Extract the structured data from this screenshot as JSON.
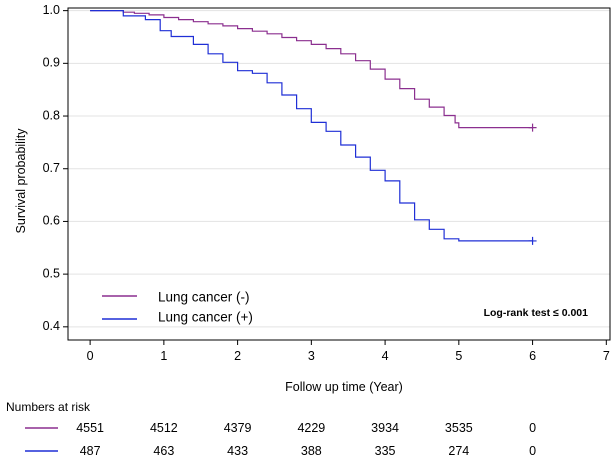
{
  "chart_data": {
    "type": "line",
    "xlabel": "Follow up time (Year)",
    "ylabel": "Survival probability",
    "xlim": [
      -0.3,
      7.05
    ],
    "ylim": [
      0.375,
      1.005
    ],
    "x_ticks": [
      0,
      1,
      2,
      3,
      4,
      5,
      6,
      7
    ],
    "y_ticks": [
      0.4,
      0.5,
      0.6,
      0.7,
      0.8,
      0.9,
      1.0
    ],
    "y_tick_labels": [
      "0.4",
      "0.5",
      "0.6",
      "0.7",
      "0.8",
      "0.9",
      "1.0"
    ],
    "horizontal_grid": true,
    "legend_position": "bottom-left",
    "annotation": "Log-rank test ≤ 0.001",
    "series": [
      {
        "name": "Lung cancer (-)",
        "color": "#8b2f8f",
        "x": [
          0,
          0.25,
          0.45,
          0.6,
          0.8,
          1.0,
          1.2,
          1.4,
          1.6,
          1.8,
          2.0,
          2.2,
          2.4,
          2.6,
          2.8,
          3.0,
          3.2,
          3.4,
          3.6,
          3.8,
          4.0,
          4.2,
          4.4,
          4.6,
          4.8,
          4.95,
          5.0,
          6.0
        ],
        "y": [
          1.0,
          1.0,
          0.997,
          0.995,
          0.992,
          0.987,
          0.983,
          0.979,
          0.975,
          0.971,
          0.966,
          0.961,
          0.956,
          0.949,
          0.943,
          0.936,
          0.928,
          0.918,
          0.905,
          0.889,
          0.87,
          0.852,
          0.832,
          0.817,
          0.801,
          0.787,
          0.778,
          0.778
        ],
        "censor_x": [
          6.0
        ]
      },
      {
        "name": "Lung cancer (+)",
        "color": "#1f2fd6",
        "x": [
          0,
          0.3,
          0.45,
          0.75,
          0.95,
          1.1,
          1.4,
          1.6,
          1.8,
          2.0,
          2.2,
          2.4,
          2.6,
          2.8,
          3.0,
          3.2,
          3.4,
          3.6,
          3.8,
          4.0,
          4.2,
          4.4,
          4.6,
          4.8,
          5.0,
          6.0
        ],
        "y": [
          1.0,
          1.0,
          0.99,
          0.983,
          0.962,
          0.951,
          0.936,
          0.918,
          0.902,
          0.886,
          0.881,
          0.863,
          0.84,
          0.814,
          0.788,
          0.771,
          0.745,
          0.722,
          0.697,
          0.677,
          0.635,
          0.603,
          0.585,
          0.567,
          0.563,
          0.563
        ],
        "censor_x": [
          6.0
        ]
      }
    ],
    "risk_table": {
      "title": "Numbers at risk",
      "x": [
        0,
        1,
        2,
        3,
        4,
        5,
        6
      ],
      "rows": [
        {
          "series": "Lung cancer (-)",
          "color": "#8b2f8f",
          "values": [
            "4551",
            "4512",
            "4379",
            "4229",
            "3934",
            "3535",
            "0"
          ]
        },
        {
          "series": "Lung cancer (+)",
          "color": "#1f2fd6",
          "values": [
            "487",
            "463",
            "433",
            "388",
            "335",
            "274",
            "0"
          ]
        }
      ]
    }
  }
}
